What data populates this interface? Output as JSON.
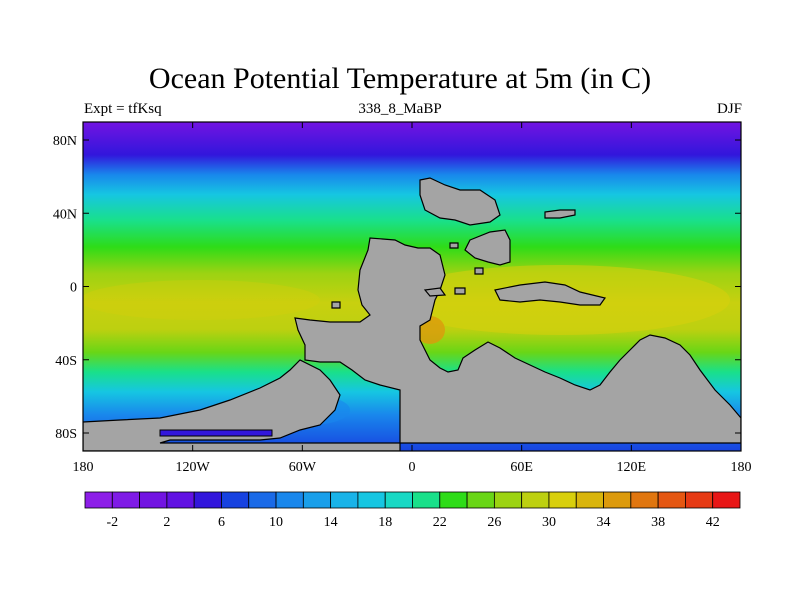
{
  "title": "Ocean Potential Temperature at 5m (in C)",
  "left_subtitle": "Expt = tfKsq",
  "center_subtitle": "338_8_MaBP",
  "right_subtitle": "DJF",
  "x_ticks": [
    "180",
    "120W",
    "60W",
    "0",
    "60E",
    "120E",
    "180"
  ],
  "y_ticks": [
    "80N",
    "40N",
    "0",
    "40S",
    "80S"
  ],
  "colorbar": {
    "labels": [
      "-2",
      "2",
      "6",
      "10",
      "14",
      "18",
      "22",
      "26",
      "30",
      "34",
      "38",
      "42"
    ],
    "colors": [
      "#8d1ee8",
      "#7f1be6",
      "#7214e2",
      "#6112e3",
      "#3216dc",
      "#1742e0",
      "#1a6ae7",
      "#1987ec",
      "#199fea",
      "#19b3e8",
      "#16c6e2",
      "#18d8c4",
      "#19e08a",
      "#2edc18",
      "#69d616",
      "#9cd312",
      "#bdd010",
      "#d8cf0c",
      "#d9b50c",
      "#dc9a0c",
      "#e0760f",
      "#e55712",
      "#e63a14",
      "#e81616"
    ]
  },
  "land_color": "#a4a4a4"
}
